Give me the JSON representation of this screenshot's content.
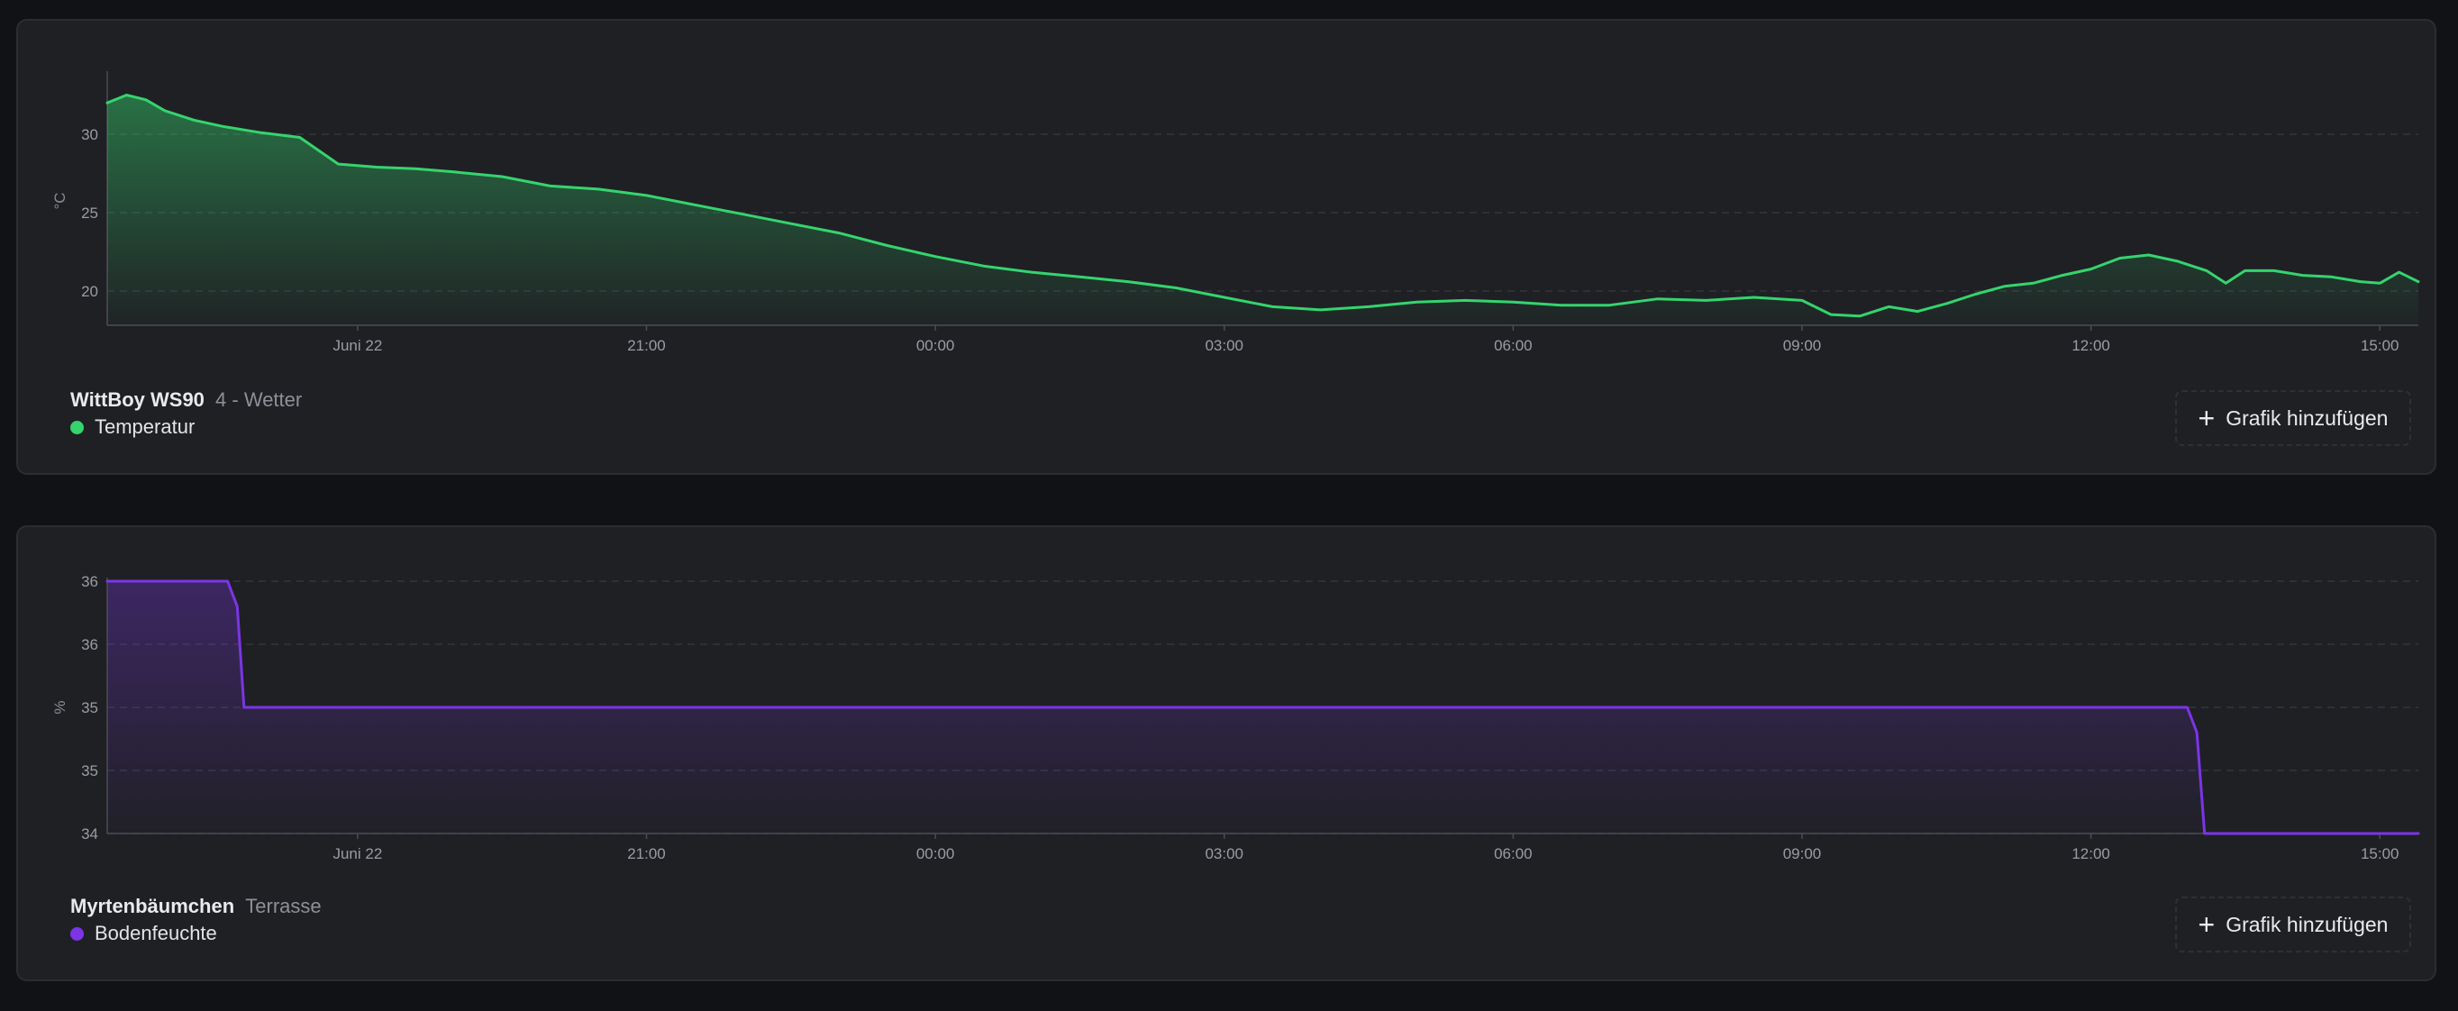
{
  "cards": [
    {
      "device_name": "WittBoy WS90",
      "device_location": "4 - Wetter",
      "series_label": "Temperatur",
      "add_button_label": "Grafik hinzufügen",
      "color": "#35d46e",
      "chart_data": {
        "type": "area",
        "ylabel": "°C",
        "ylim": [
          18,
          34
        ],
        "yticks": [
          20,
          25,
          30
        ],
        "ytick_labels": [
          "20",
          "25",
          "30"
        ],
        "xticks": [
          "Juni 22",
          "21:00",
          "00:00",
          "03:00",
          "06:00",
          "09:00",
          "12:00",
          "15:00"
        ],
        "xlim_hours": [
          15.4,
          39.4
        ],
        "xtick_hours": [
          18,
          21,
          24,
          27,
          30,
          33,
          36,
          39
        ],
        "grid": true,
        "series": [
          {
            "name": "Temperatur",
            "x": [
              15.4,
              15.6,
              15.8,
              16.0,
              16.3,
              16.6,
              17.0,
              17.4,
              17.8,
              18.2,
              18.6,
              19.0,
              19.5,
              20.0,
              20.5,
              21.0,
              21.5,
              22.0,
              22.5,
              23.0,
              23.5,
              24.0,
              24.5,
              25.0,
              25.5,
              26.0,
              26.5,
              27.0,
              27.5,
              28.0,
              28.5,
              29.0,
              29.5,
              30.0,
              30.5,
              31.0,
              31.5,
              32.0,
              32.5,
              33.0,
              33.3,
              33.6,
              33.9,
              34.2,
              34.5,
              34.8,
              35.1,
              35.4,
              35.7,
              36.0,
              36.3,
              36.6,
              36.9,
              37.2,
              37.4,
              37.6,
              37.9,
              38.2,
              38.5,
              38.8,
              39.0,
              39.2,
              39.4
            ],
            "y": [
              32.0,
              32.5,
              32.2,
              31.5,
              30.9,
              30.5,
              30.1,
              29.8,
              28.1,
              27.9,
              27.8,
              27.6,
              27.3,
              26.7,
              26.5,
              26.1,
              25.5,
              24.9,
              24.3,
              23.7,
              22.9,
              22.2,
              21.6,
              21.2,
              20.9,
              20.6,
              20.2,
              19.6,
              19.0,
              18.8,
              19.0,
              19.3,
              19.4,
              19.3,
              19.1,
              19.1,
              19.5,
              19.4,
              19.6,
              19.4,
              18.5,
              18.4,
              19.0,
              18.7,
              19.2,
              19.8,
              20.3,
              20.5,
              21.0,
              21.4,
              22.1,
              22.3,
              21.9,
              21.3,
              20.5,
              21.3,
              21.3,
              21.0,
              20.9,
              20.6,
              20.5,
              21.2,
              20.6
            ]
          }
        ]
      }
    },
    {
      "device_name": "Myrtenbäumchen",
      "device_location": "Terrasse",
      "series_label": "Bodenfeuchte",
      "add_button_label": "Grafik hinzufügen",
      "color": "#7b35e6",
      "chart_data": {
        "type": "area",
        "ylabel": "%",
        "ylim": [
          34,
          36
        ],
        "yticks": [
          34,
          34.5,
          35,
          35.5,
          36
        ],
        "ytick_labels": [
          "34",
          "35",
          "35",
          "36",
          "36"
        ],
        "xticks": [
          "Juni 22",
          "21:00",
          "00:00",
          "03:00",
          "06:00",
          "09:00",
          "12:00",
          "15:00"
        ],
        "xlim_hours": [
          15.4,
          39.4
        ],
        "xtick_hours": [
          18,
          21,
          24,
          27,
          30,
          33,
          36,
          39
        ],
        "grid": true,
        "series": [
          {
            "name": "Bodenfeuchte",
            "x": [
              15.4,
              16.65,
              16.75,
              16.82,
              37.0,
              37.1,
              37.18,
              39.4
            ],
            "y": [
              36,
              36,
              35.8,
              35,
              35,
              34.8,
              34,
              34
            ]
          }
        ]
      }
    }
  ]
}
